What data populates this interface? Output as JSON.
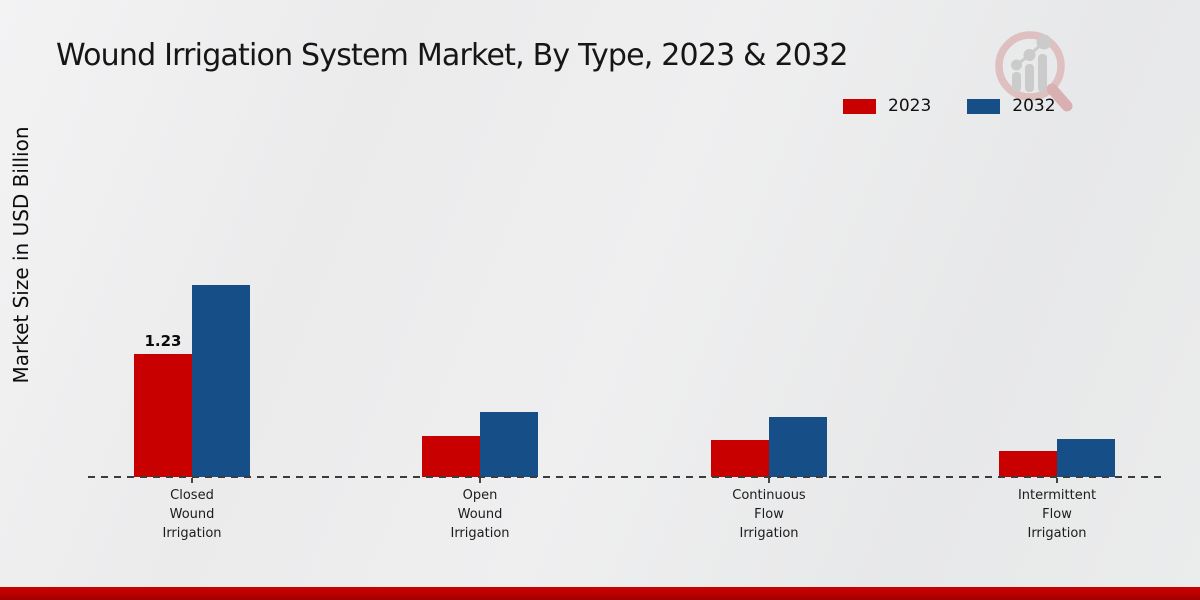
{
  "chart_data": {
    "type": "bar",
    "title": "Wound Irrigation System Market, By Type, 2023 & 2032",
    "ylabel": "Market Size in USD Billion",
    "xlabel": "",
    "categories": [
      "Closed\nWound\nIrrigation",
      "Open\nWound\nIrrigation",
      "Continuous\nFlow\nIrrigation",
      "Intermittent\nFlow\nIrrigation"
    ],
    "series": [
      {
        "name": "2023",
        "color": "#c80000",
        "values": [
          1.23,
          0.41,
          0.37,
          0.26
        ]
      },
      {
        "name": "2032",
        "color": "#164f87",
        "values": [
          1.92,
          0.65,
          0.6,
          0.38
        ]
      }
    ],
    "value_labels": [
      {
        "series_index": 0,
        "category_index": 0,
        "text": "1.23"
      }
    ],
    "ylim": [
      0,
      2.0
    ],
    "grid": false,
    "legend_position": "top-right",
    "baseline_style": "dashed"
  },
  "branding": {
    "logo_icon": "magnifier-bar-chart-logo"
  },
  "footer": {
    "accent_color": "#c00000"
  }
}
